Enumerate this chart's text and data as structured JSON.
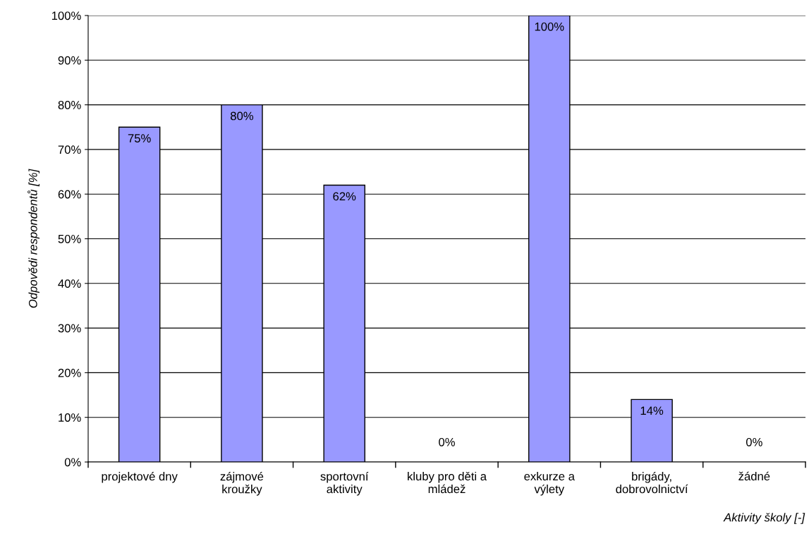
{
  "chart_data": {
    "type": "bar",
    "xlabel": "Aktivity školy [-]",
    "ylabel": "Odpovědi respondentů [%]",
    "categories": [
      "projektové dny",
      "zájmové\nkroužky",
      "sportovní\naktivity",
      "kluby pro děti a\nmládež",
      "exkurze a\nvýlety",
      "brigády,\ndobrovolnictví",
      "žádné"
    ],
    "values": [
      75,
      80,
      62,
      0,
      100,
      14,
      0
    ],
    "value_labels": [
      "75%",
      "80%",
      "62%",
      "0%",
      "100%",
      "14%",
      "0%"
    ],
    "color": "#9999ff",
    "ylim": [
      0,
      100
    ],
    "yticks": [
      {
        "value": 0,
        "label": "0%"
      },
      {
        "value": 10,
        "label": "10%"
      },
      {
        "value": 20,
        "label": "20%"
      },
      {
        "value": 30,
        "label": "30%"
      },
      {
        "value": 40,
        "label": "40%"
      },
      {
        "value": 50,
        "label": "50%"
      },
      {
        "value": 60,
        "label": "60%"
      },
      {
        "value": 70,
        "label": "70%"
      },
      {
        "value": 80,
        "label": "80%"
      },
      {
        "value": 90,
        "label": "90%"
      },
      {
        "value": 100,
        "label": "100%"
      }
    ],
    "grid": "y"
  }
}
